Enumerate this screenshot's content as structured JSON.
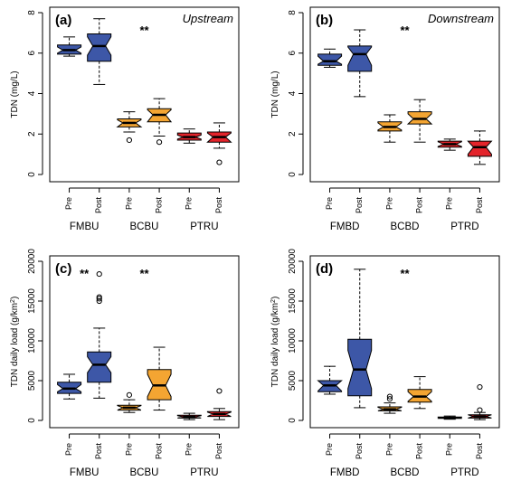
{
  "colors": {
    "blue": "#3d57a7",
    "orange": "#f4a532",
    "red": "#e3242b"
  },
  "chart_data": [
    {
      "type": "box",
      "label": "(a)",
      "region": "Upstream",
      "significance": "**",
      "ylabel": "TDN (mg/L)",
      "ylim": [
        0,
        8
      ],
      "yticks": [
        0,
        2,
        4,
        6,
        8
      ],
      "categories": [
        "Pre",
        "Post",
        "Pre",
        "Post",
        "Pre",
        "Post"
      ],
      "groups": [
        "FMBU",
        "BCBU",
        "PTRU"
      ],
      "boxes": [
        {
          "color": "blue",
          "wlo": 5.85,
          "q1": 5.95,
          "med": 6.15,
          "q3": 6.4,
          "whi": 6.8,
          "nlo": 6.0,
          "nhi": 6.3,
          "out": []
        },
        {
          "color": "blue",
          "wlo": 4.45,
          "q1": 5.6,
          "med": 6.35,
          "q3": 6.95,
          "whi": 7.7,
          "nlo": 5.9,
          "nhi": 6.8,
          "out": []
        },
        {
          "color": "orange",
          "wlo": 2.1,
          "q1": 2.35,
          "med": 2.55,
          "q3": 2.75,
          "whi": 3.1,
          "nlo": 2.35,
          "nhi": 2.7,
          "out": [
            1.7
          ]
        },
        {
          "color": "orange",
          "wlo": 1.9,
          "q1": 2.6,
          "med": 2.95,
          "q3": 3.25,
          "whi": 3.75,
          "nlo": 2.6,
          "nhi": 3.2,
          "out": [
            1.6
          ]
        },
        {
          "color": "red",
          "wlo": 1.55,
          "q1": 1.7,
          "med": 1.85,
          "q3": 2.05,
          "whi": 2.25,
          "nlo": 1.75,
          "nhi": 1.95,
          "out": []
        },
        {
          "color": "red",
          "wlo": 1.3,
          "q1": 1.6,
          "med": 1.85,
          "q3": 2.1,
          "whi": 2.55,
          "nlo": 1.6,
          "nhi": 2.05,
          "out": [
            0.6
          ]
        }
      ]
    },
    {
      "type": "box",
      "label": "(b)",
      "region": "Downstream",
      "significance": "**",
      "ylabel": "TDN (mg/L)",
      "ylim": [
        0,
        8
      ],
      "yticks": [
        0,
        2,
        4,
        6,
        8
      ],
      "categories": [
        "Pre",
        "Post",
        "Pre",
        "Post",
        "Pre",
        "Post"
      ],
      "groups": [
        "FMBD",
        "BCBD",
        "PTRD"
      ],
      "boxes": [
        {
          "color": "blue",
          "wlo": 5.3,
          "q1": 5.4,
          "med": 5.6,
          "q3": 5.95,
          "whi": 6.2,
          "nlo": 5.45,
          "nhi": 5.85,
          "out": []
        },
        {
          "color": "blue",
          "wlo": 3.85,
          "q1": 5.1,
          "med": 5.95,
          "q3": 6.35,
          "whi": 7.15,
          "nlo": 5.4,
          "nhi": 6.3,
          "out": []
        },
        {
          "color": "orange",
          "wlo": 1.6,
          "q1": 2.15,
          "med": 2.35,
          "q3": 2.6,
          "whi": 2.95,
          "nlo": 2.2,
          "nhi": 2.55,
          "out": []
        },
        {
          "color": "orange",
          "wlo": 1.6,
          "q1": 2.5,
          "med": 2.75,
          "q3": 3.1,
          "whi": 3.7,
          "nlo": 2.5,
          "nhi": 3.0,
          "out": []
        },
        {
          "color": "red",
          "wlo": 1.2,
          "q1": 1.35,
          "med": 1.5,
          "q3": 1.65,
          "whi": 1.75,
          "nlo": 1.38,
          "nhi": 1.62,
          "out": []
        },
        {
          "color": "red",
          "wlo": 0.5,
          "q1": 0.9,
          "med": 1.35,
          "q3": 1.65,
          "whi": 2.15,
          "nlo": 1.0,
          "nhi": 1.65,
          "out": []
        }
      ]
    },
    {
      "type": "box",
      "label": "(c)",
      "region": "",
      "significance": "**",
      "significance_positions": [
        1,
        3
      ],
      "ylabel": "TDN daily load (g/km²)",
      "ylim": [
        0,
        20000
      ],
      "yticks": [
        0,
        5000,
        10000,
        15000,
        20000
      ],
      "categories": [
        "Pre",
        "Post",
        "Pre",
        "Post",
        "Pre",
        "Post"
      ],
      "groups": [
        "FMBU",
        "BCBU",
        "PTRU"
      ],
      "boxes": [
        {
          "color": "blue",
          "wlo": 2700,
          "q1": 3400,
          "med": 4000,
          "q3": 4800,
          "whi": 5800,
          "nlo": 3600,
          "nhi": 4500,
          "out": []
        },
        {
          "color": "blue",
          "wlo": 2800,
          "q1": 4800,
          "med": 7000,
          "q3": 8600,
          "whi": 11600,
          "nlo": 6000,
          "nhi": 8000,
          "out": [
            15000,
            15300,
            15500,
            18400
          ]
        },
        {
          "color": "orange",
          "wlo": 1000,
          "q1": 1300,
          "med": 1600,
          "q3": 1900,
          "whi": 2600,
          "nlo": 1300,
          "nhi": 1850,
          "out": [
            3200
          ]
        },
        {
          "color": "orange",
          "wlo": 1300,
          "q1": 2600,
          "med": 4400,
          "q3": 6400,
          "whi": 9200,
          "nlo": 3000,
          "nhi": 5800,
          "out": []
        },
        {
          "color": "red",
          "wlo": 100,
          "q1": 300,
          "med": 450,
          "q3": 650,
          "whi": 900,
          "nlo": 300,
          "nhi": 600,
          "out": []
        },
        {
          "color": "red",
          "wlo": 100,
          "q1": 500,
          "med": 800,
          "q3": 1100,
          "whi": 1500,
          "nlo": 500,
          "nhi": 1050,
          "out": [
            3700
          ]
        }
      ]
    },
    {
      "type": "box",
      "label": "(d)",
      "region": "",
      "significance": "**",
      "significance_positions": [
        3
      ],
      "ylabel": "TDN daily load (g/km²)",
      "ylim": [
        0,
        20000
      ],
      "yticks": [
        0,
        5000,
        10000,
        15000,
        20000
      ],
      "categories": [
        "Pre",
        "Post",
        "Pre",
        "Post",
        "Pre",
        "Post"
      ],
      "groups": [
        "FMBD",
        "BCBD",
        "PTRD"
      ],
      "boxes": [
        {
          "color": "blue",
          "wlo": 3300,
          "q1": 3600,
          "med": 4400,
          "q3": 5000,
          "whi": 6800,
          "nlo": 3700,
          "nhi": 5000,
          "out": []
        },
        {
          "color": "blue",
          "wlo": 1600,
          "q1": 3100,
          "med": 6400,
          "q3": 10200,
          "whi": 19000,
          "nlo": 4000,
          "nhi": 8800,
          "out": []
        },
        {
          "color": "orange",
          "wlo": 900,
          "q1": 1200,
          "med": 1400,
          "q3": 1700,
          "whi": 2200,
          "nlo": 1200,
          "nhi": 1650,
          "out": [
            2700,
            3000
          ]
        },
        {
          "color": "orange",
          "wlo": 1500,
          "q1": 2300,
          "med": 3000,
          "q3": 3900,
          "whi": 5500,
          "nlo": 2400,
          "nhi": 3600,
          "out": []
        },
        {
          "color": "red",
          "wlo": 150,
          "q1": 250,
          "med": 330,
          "q3": 420,
          "whi": 550,
          "nlo": 260,
          "nhi": 400,
          "out": []
        },
        {
          "color": "red",
          "wlo": 100,
          "q1": 300,
          "med": 500,
          "q3": 700,
          "whi": 1000,
          "nlo": 300,
          "nhi": 700,
          "out": [
            1300,
            4200
          ]
        }
      ]
    }
  ]
}
